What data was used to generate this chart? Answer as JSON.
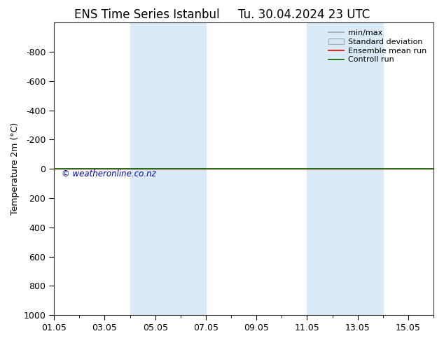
{
  "title_left": "ENS Time Series Istanbul",
  "title_right": "Tu. 30.04.2024 23 UTC",
  "ylabel": "Temperature 2m (°C)",
  "ylim_bottom": 1000,
  "ylim_top": -1000,
  "yticks": [
    -800,
    -600,
    -400,
    -200,
    0,
    200,
    400,
    600,
    800,
    1000
  ],
  "xtick_labels": [
    "01.05",
    "03.05",
    "05.05",
    "07.05",
    "09.05",
    "11.05",
    "13.05",
    "15.05"
  ],
  "xtick_positions": [
    0,
    2,
    4,
    6,
    8,
    10,
    12,
    14
  ],
  "xlim": [
    0,
    15
  ],
  "blue_bands": [
    [
      3,
      4.5
    ],
    [
      4.5,
      6
    ],
    [
      10,
      11.5
    ],
    [
      11.5,
      13
    ]
  ],
  "blue_band_color": "#daeaf6",
  "green_line_y": 0,
  "red_line_y": 0,
  "copyright_text": "© weatheronline.co.nz",
  "copyright_color": "#0000bb",
  "legend_items": [
    "min/max",
    "Standard deviation",
    "Ensemble mean run",
    "Controll run"
  ],
  "legend_colors_line": [
    "#aaaaaa",
    "#cccccc",
    "#dd0000",
    "#006600"
  ],
  "background_color": "#ffffff",
  "title_fontsize": 12,
  "label_fontsize": 9,
  "tick_fontsize": 9,
  "legend_fontsize": 8
}
